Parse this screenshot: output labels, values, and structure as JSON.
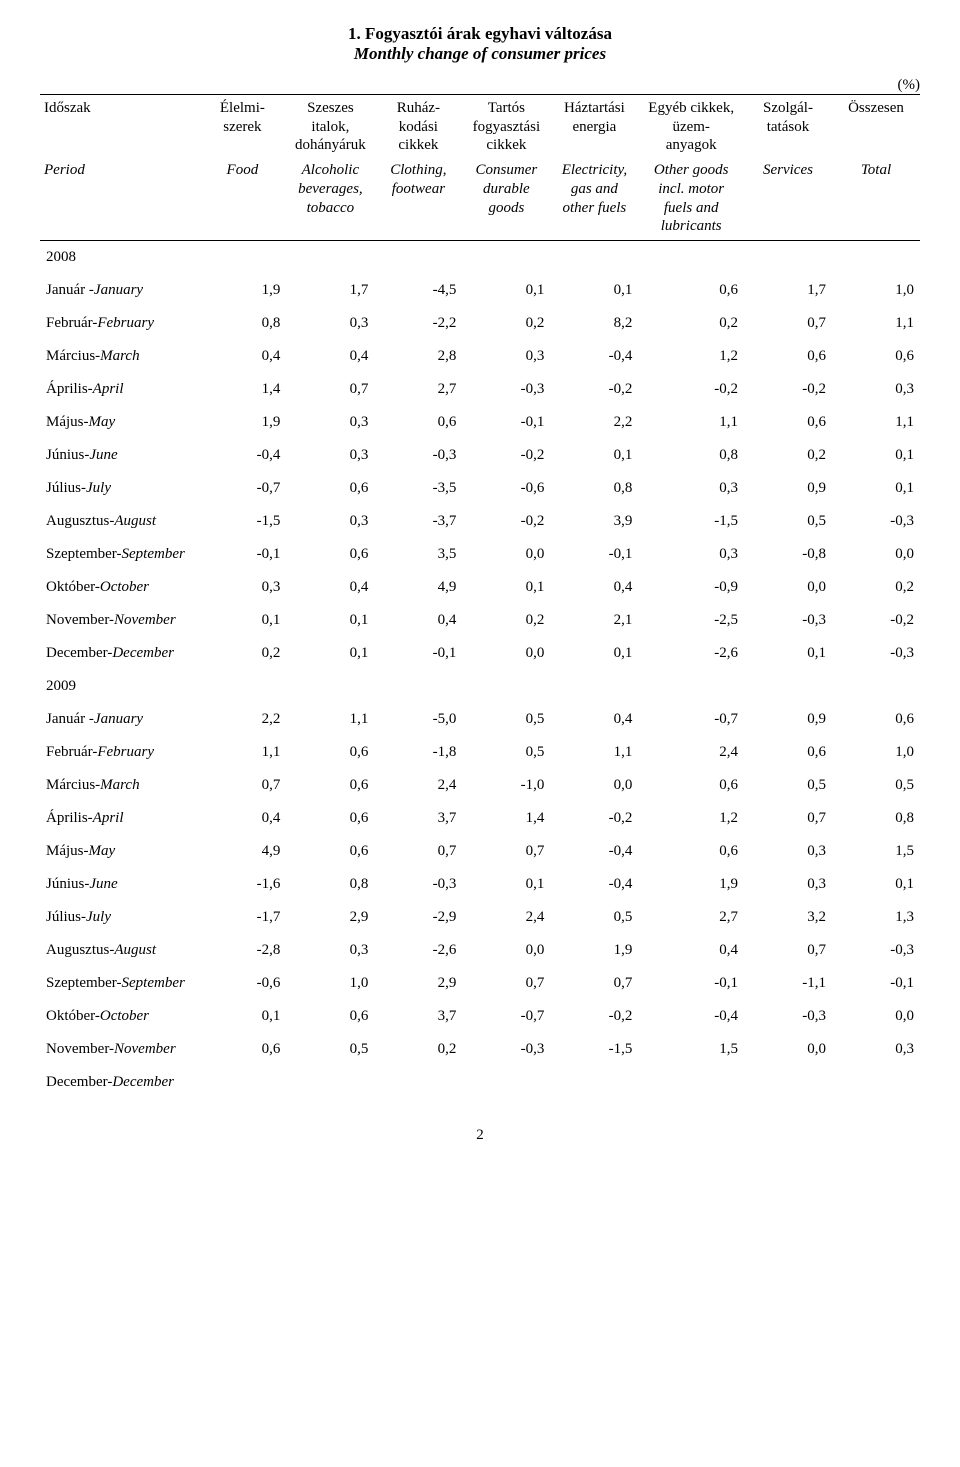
{
  "title_hu": "1. Fogyasztói árak egyhavi változása",
  "title_en": "Monthly change of consumer prices",
  "unit_label": "(%)",
  "page_number": "2",
  "columns_hu": [
    "Időszak",
    "Élelmi-\nszerek",
    "Szeszes\nitalok,\ndohányáruk",
    "Ruház-\nkodási\ncikkek",
    "Tartós\nfogyasztási\ncikkek",
    "Háztartási\nenergia",
    "Egyéb cikkek,\nüzem-\nanyagok",
    "Szolgál-\ntatások",
    "Összesen"
  ],
  "columns_en": [
    "Period",
    "Food",
    "Alcoholic\nbeverages,\ntobacco",
    "Clothing,\nfootwear",
    "Consumer\ndurable\ngoods",
    "Electricity,\ngas and\nother fuels",
    "Other goods\nincl. motor\nfuels and\nlubricants",
    "Services",
    "Total"
  ],
  "sections": [
    {
      "year": "2008",
      "rows": [
        {
          "label_hu": "Január -",
          "label_en": "January",
          "v": [
            "1,9",
            "1,7",
            "-4,5",
            "0,1",
            "0,1",
            "0,6",
            "1,7",
            "1,0"
          ]
        },
        {
          "label_hu": "Február-",
          "label_en": "February",
          "v": [
            "0,8",
            "0,3",
            "-2,2",
            "0,2",
            "8,2",
            "0,2",
            "0,7",
            "1,1"
          ]
        },
        {
          "label_hu": "Március-",
          "label_en": "March",
          "v": [
            "0,4",
            "0,4",
            "2,8",
            "0,3",
            "-0,4",
            "1,2",
            "0,6",
            "0,6"
          ]
        },
        {
          "label_hu": "Április-",
          "label_en": "April",
          "v": [
            "1,4",
            "0,7",
            "2,7",
            "-0,3",
            "-0,2",
            "-0,2",
            "-0,2",
            "0,3"
          ]
        },
        {
          "label_hu": "Május-",
          "label_en": "May",
          "v": [
            "1,9",
            "0,3",
            "0,6",
            "-0,1",
            "2,2",
            "1,1",
            "0,6",
            "1,1"
          ]
        },
        {
          "label_hu": "Június-",
          "label_en": "June",
          "v": [
            "-0,4",
            "0,3",
            "-0,3",
            "-0,2",
            "0,1",
            "0,8",
            "0,2",
            "0,1"
          ]
        },
        {
          "label_hu": "Július-",
          "label_en": "July",
          "v": [
            "-0,7",
            "0,6",
            "-3,5",
            "-0,6",
            "0,8",
            "0,3",
            "0,9",
            "0,1"
          ]
        },
        {
          "label_hu": "Augusztus-",
          "label_en": "August",
          "v": [
            "-1,5",
            "0,3",
            "-3,7",
            "-0,2",
            "3,9",
            "-1,5",
            "0,5",
            "-0,3"
          ]
        },
        {
          "label_hu": "Szeptember-",
          "label_en": "September",
          "v": [
            "-0,1",
            "0,6",
            "3,5",
            "0,0",
            "-0,1",
            "0,3",
            "-0,8",
            "0,0"
          ]
        },
        {
          "label_hu": "Október-",
          "label_en": "October",
          "v": [
            "0,3",
            "0,4",
            "4,9",
            "0,1",
            "0,4",
            "-0,9",
            "0,0",
            "0,2"
          ]
        },
        {
          "label_hu": "November-",
          "label_en": "November",
          "v": [
            "0,1",
            "0,1",
            "0,4",
            "0,2",
            "2,1",
            "-2,5",
            "-0,3",
            "-0,2"
          ]
        },
        {
          "label_hu": "December-",
          "label_en": "December",
          "v": [
            "0,2",
            "0,1",
            "-0,1",
            "0,0",
            "0,1",
            "-2,6",
            "0,1",
            "-0,3"
          ]
        }
      ]
    },
    {
      "year": "2009",
      "rows": [
        {
          "label_hu": "Január -",
          "label_en": "January",
          "v": [
            "2,2",
            "1,1",
            "-5,0",
            "0,5",
            "0,4",
            "-0,7",
            "0,9",
            "0,6"
          ]
        },
        {
          "label_hu": "Február-",
          "label_en": "February",
          "v": [
            "1,1",
            "0,6",
            "-1,8",
            "0,5",
            "1,1",
            "2,4",
            "0,6",
            "1,0"
          ]
        },
        {
          "label_hu": "Március-",
          "label_en": "March",
          "v": [
            "0,7",
            "0,6",
            "2,4",
            "-1,0",
            "0,0",
            "0,6",
            "0,5",
            "0,5"
          ]
        },
        {
          "label_hu": "Április-",
          "label_en": "April",
          "v": [
            "0,4",
            "0,6",
            "3,7",
            "1,4",
            "-0,2",
            "1,2",
            "0,7",
            "0,8"
          ]
        },
        {
          "label_hu": "Május-",
          "label_en": "May",
          "v": [
            "4,9",
            "0,6",
            "0,7",
            "0,7",
            "-0,4",
            "0,6",
            "0,3",
            "1,5"
          ]
        },
        {
          "label_hu": "Június-",
          "label_en": "June",
          "v": [
            "-1,6",
            "0,8",
            "-0,3",
            "0,1",
            "-0,4",
            "1,9",
            "0,3",
            "0,1"
          ]
        },
        {
          "label_hu": "Július-",
          "label_en": "July",
          "v": [
            "-1,7",
            "2,9",
            "-2,9",
            "2,4",
            "0,5",
            "2,7",
            "3,2",
            "1,3"
          ]
        },
        {
          "label_hu": "Augusztus-",
          "label_en": "August",
          "v": [
            "-2,8",
            "0,3",
            "-2,6",
            "0,0",
            "1,9",
            "0,4",
            "0,7",
            "-0,3"
          ]
        },
        {
          "label_hu": "Szeptember-",
          "label_en": "September",
          "v": [
            "-0,6",
            "1,0",
            "2,9",
            "0,7",
            "0,7",
            "-0,1",
            "-1,1",
            "-0,1"
          ]
        },
        {
          "label_hu": "Október-",
          "label_en": "October",
          "v": [
            "0,1",
            "0,6",
            "3,7",
            "-0,7",
            "-0,2",
            "-0,4",
            "-0,3",
            "0,0"
          ]
        },
        {
          "label_hu": "November-",
          "label_en": "November",
          "v": [
            "0,6",
            "0,5",
            "0,2",
            "-0,3",
            "-1,5",
            "1,5",
            "0,0",
            "0,3"
          ]
        },
        {
          "label_hu": "December-",
          "label_en": "December",
          "v": [
            "",
            "",
            "",
            "",
            "",
            "",
            "",
            ""
          ]
        }
      ]
    }
  ],
  "col_widths_pct": [
    18,
    10,
    10,
    10,
    10,
    10,
    12,
    10,
    10
  ],
  "font_family": "Times New Roman",
  "font_size_pt": 12,
  "colors": {
    "text": "#000000",
    "background": "#ffffff",
    "border": "#000000"
  }
}
